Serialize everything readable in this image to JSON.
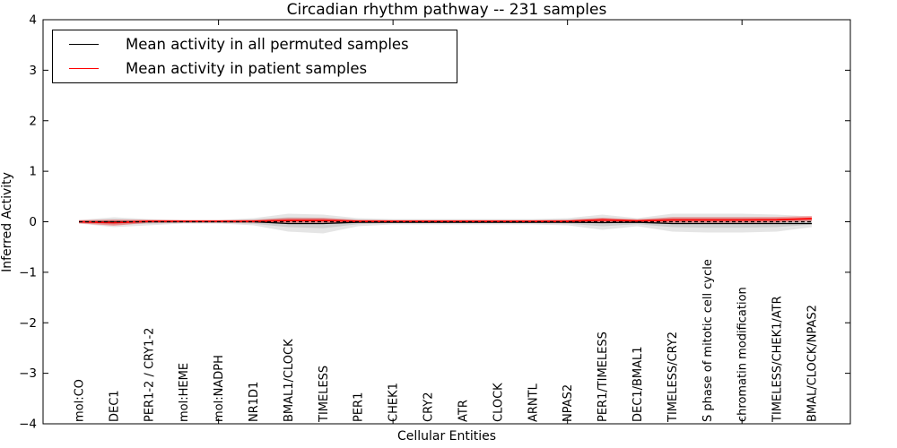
{
  "chart_data": {
    "type": "line",
    "title": "Circadian rhythm pathway -- 231 samples",
    "xlabel": "Cellular Entities",
    "ylabel": "Inferred Activity",
    "ylim": [
      -4,
      4
    ],
    "yticks": [
      4,
      3,
      2,
      1,
      0,
      -1,
      -2,
      -3,
      -4
    ],
    "top_bottom_extra_tick_indices": [
      4,
      9,
      14,
      19
    ],
    "grid": false,
    "legend_position": "upper left",
    "categories": [
      "mol:CO",
      "DEC1",
      "PER1-2 / CRY1-2",
      "mol:HEME",
      "mol:NADPH",
      "NR1D1",
      "BMAL1/CLOCK",
      "TIMELESS",
      "PER1",
      "CHEK1",
      "CRY2",
      "ATR",
      "CLOCK",
      "ARNTL",
      "NPAS2",
      "PER1/TIMELESS",
      "DEC1/BMAL1",
      "TIMELESS/CRY2",
      "S phase of mitotic cell cycle",
      "chromatin modification",
      "TIMELESS/CHEK1/ATR",
      "BMAL/CLOCK/NPAS2"
    ],
    "series": [
      {
        "name": "Mean activity in all permuted samples",
        "color": "#000000",
        "values": [
          0,
          0,
          0,
          0,
          0,
          0,
          -0.035,
          -0.035,
          -0.01,
          -0.01,
          -0.01,
          -0.01,
          -0.01,
          -0.01,
          -0.01,
          -0.018,
          -0.01,
          -0.035,
          -0.035,
          -0.035,
          -0.035,
          -0.035
        ]
      },
      {
        "name": "Mean activity in patient samples",
        "color": "#ff0000",
        "values": [
          0,
          -0.018,
          0.009,
          0.009,
          0.009,
          0.009,
          0.027,
          0.027,
          0.009,
          0.009,
          0.009,
          0.009,
          0.009,
          0.009,
          0.009,
          0.035,
          0.018,
          0.035,
          0.035,
          0.035,
          0.04,
          0.062
        ]
      }
    ],
    "zero_reference_line": {
      "style": "dashed",
      "color": "#000000",
      "y": 0
    },
    "permuted_band": {
      "color": "#000000",
      "opacity": 0.1,
      "upper": [
        0.035,
        0.089,
        0.053,
        0.035,
        0.035,
        0.071,
        0.16,
        0.142,
        0.071,
        0.053,
        0.053,
        0.053,
        0.053,
        0.053,
        0.071,
        0.142,
        0.071,
        0.16,
        0.16,
        0.16,
        0.142,
        0.106
      ],
      "lower": [
        -0.035,
        -0.106,
        -0.071,
        -0.035,
        -0.035,
        -0.071,
        -0.195,
        -0.23,
        -0.089,
        -0.053,
        -0.053,
        -0.053,
        -0.053,
        -0.053,
        -0.071,
        -0.16,
        -0.089,
        -0.195,
        -0.213,
        -0.213,
        -0.195,
        -0.106
      ]
    },
    "patient_band": {
      "color": "#ff0000",
      "opacity": 0.32,
      "halfwidth": [
        0.03,
        0.06,
        0.03,
        0.025,
        0.025,
        0.03,
        0.05,
        0.05,
        0.03,
        0.025,
        0.025,
        0.025,
        0.025,
        0.025,
        0.03,
        0.045,
        0.03,
        0.055,
        0.055,
        0.055,
        0.055,
        0.05
      ]
    }
  }
}
